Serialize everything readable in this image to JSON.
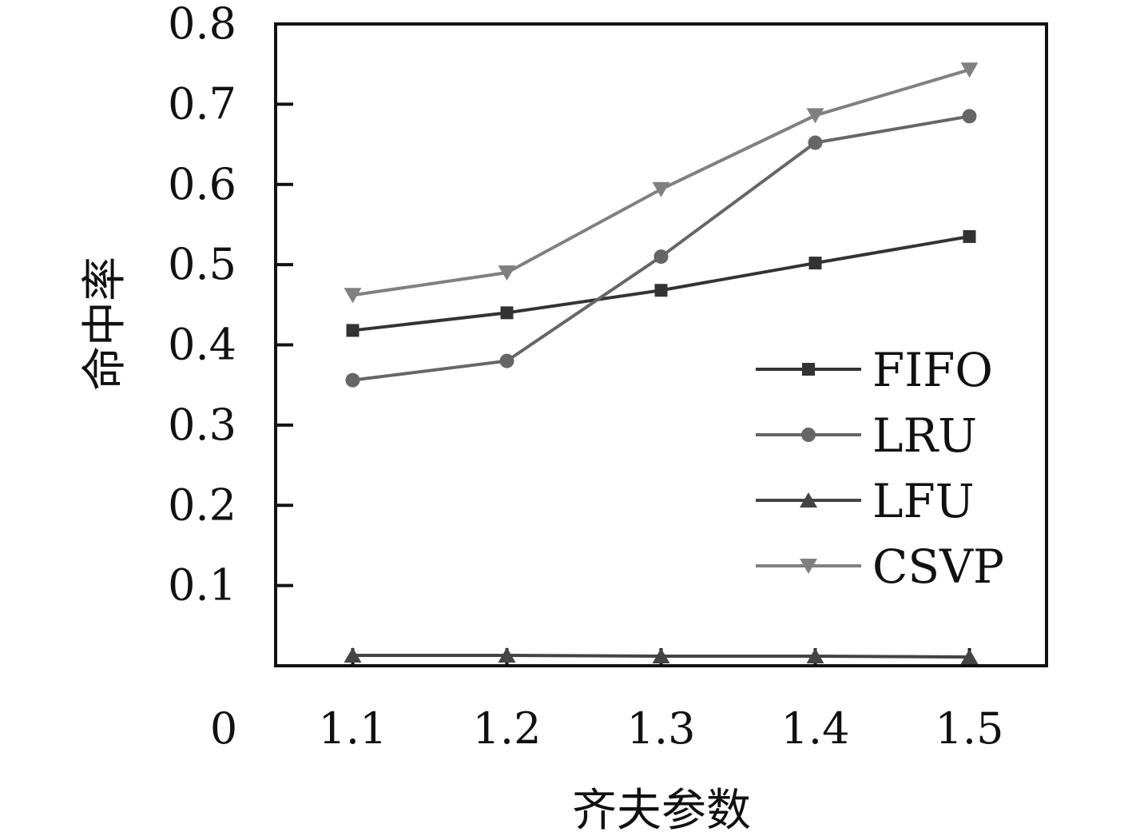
{
  "chart_data": {
    "type": "line",
    "title": "",
    "xlabel": "齐夫参数",
    "ylabel": "命中率",
    "x": [
      1.1,
      1.2,
      1.3,
      1.4,
      1.5
    ],
    "x_tick_labels": [
      "1.1",
      "1.2",
      "1.3",
      "1.4",
      "1.5"
    ],
    "y_tick_labels": [
      "0.1",
      "0.2",
      "0.3",
      "0.4",
      "0.5",
      "0.6",
      "0.7",
      "0.8"
    ],
    "origin_label": "0",
    "xlim": [
      1.05,
      1.55
    ],
    "ylim": [
      0,
      0.8
    ],
    "grid": false,
    "legend_position": "right-middle",
    "series": [
      {
        "name": "FIFO",
        "marker": "square",
        "color": "#333333",
        "values": [
          0.418,
          0.44,
          0.468,
          0.502,
          0.535
        ]
      },
      {
        "name": "LRU",
        "marker": "circle",
        "color": "#666666",
        "values": [
          0.356,
          0.38,
          0.51,
          0.652,
          0.685
        ]
      },
      {
        "name": "LFU",
        "marker": "triangle-up",
        "color": "#444444",
        "values": [
          0.013,
          0.013,
          0.012,
          0.012,
          0.011
        ]
      },
      {
        "name": "CSVP",
        "marker": "triangle-down",
        "color": "#808080",
        "values": [
          0.462,
          0.49,
          0.594,
          0.686,
          0.743
        ]
      }
    ]
  }
}
